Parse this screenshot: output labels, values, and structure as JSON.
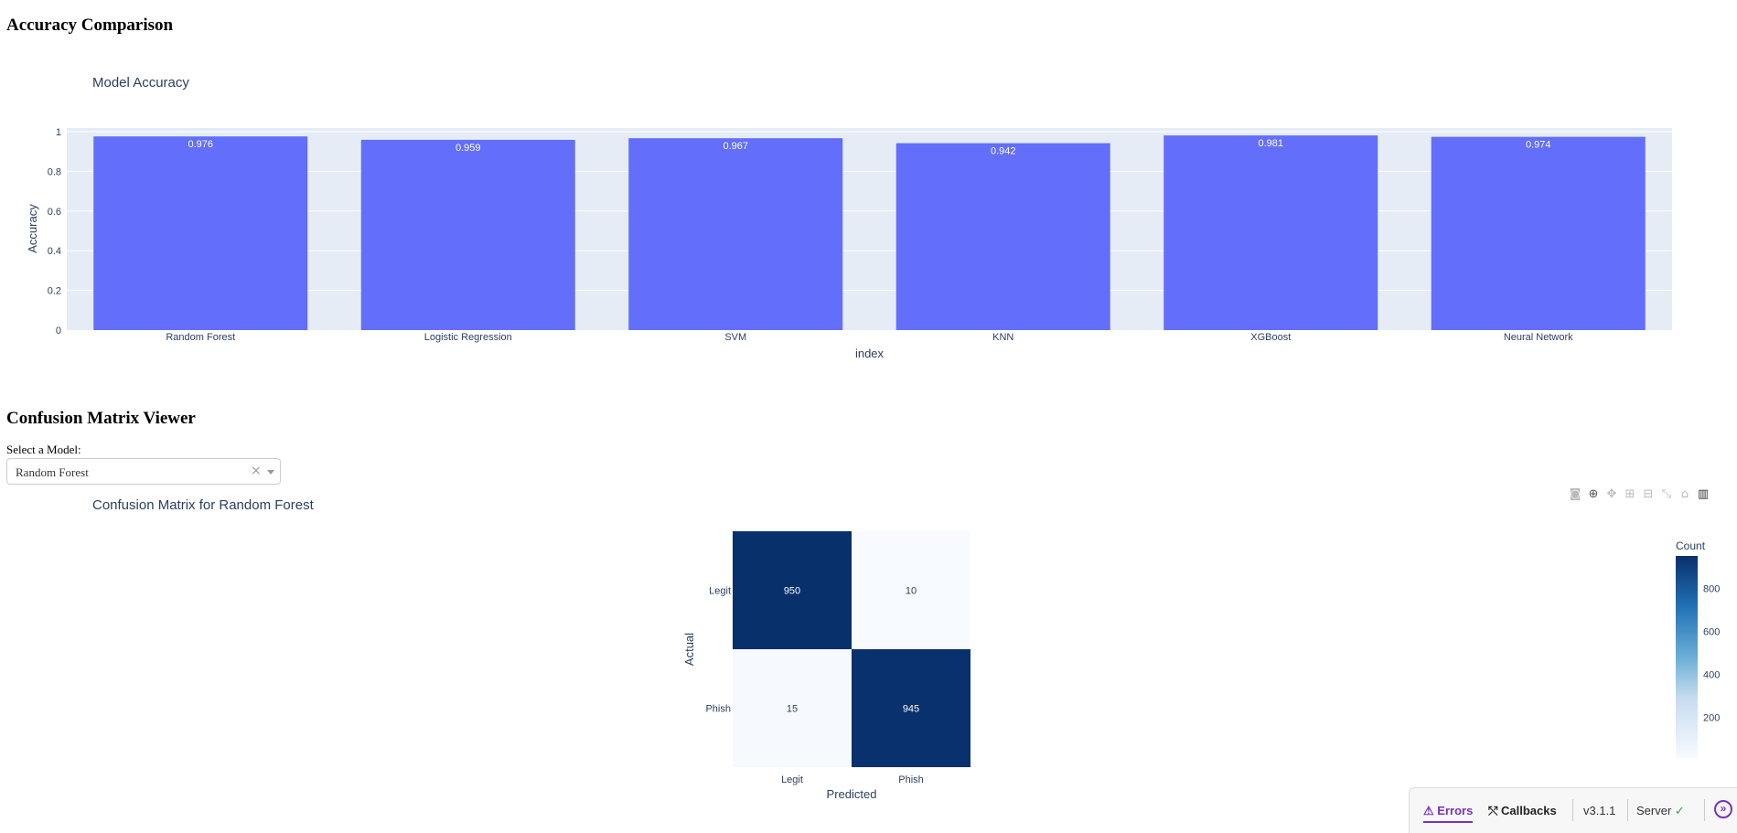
{
  "section1": {
    "heading": "Accuracy Comparison"
  },
  "section2": {
    "heading": "Confusion Matrix Viewer"
  },
  "dropdown": {
    "label": "Select a Model:",
    "value": "Random Forest",
    "clear_icon": "close-icon",
    "arrow_icon": "chevron-down-icon"
  },
  "modebar": {
    "icons": [
      "camera-icon",
      "zoom-icon",
      "pan-icon",
      "zoom-in-icon",
      "zoom-out-icon",
      "autoscale-icon",
      "reset-axes-icon",
      "plotly-logo-icon"
    ]
  },
  "devtools": {
    "errors": "Errors",
    "callbacks": "Callbacks",
    "version": "v3.1.1",
    "server": "Server",
    "toggle_icon": "chevron-right-icon"
  },
  "chart_data": [
    {
      "type": "bar",
      "title": "Model Accuracy",
      "xlabel": "index",
      "ylabel": "Accuracy",
      "categories": [
        "Random Forest",
        "Logistic Regression",
        "SVM",
        "KNN",
        "XGBoost",
        "Neural Network"
      ],
      "values": [
        0.976,
        0.959,
        0.967,
        0.942,
        0.981,
        0.974
      ],
      "data_labels": [
        "0.976",
        "0.959",
        "0.967",
        "0.942",
        "0.981",
        "0.974"
      ],
      "yticks": [
        "0",
        "0.2",
        "0.4",
        "0.6",
        "0.8",
        "1"
      ],
      "ylim": [
        0,
        1
      ],
      "bar_color": "#636efa",
      "plot_bg": "#e5ecf6",
      "grid": true
    },
    {
      "type": "heatmap",
      "title": "Confusion Matrix for Random Forest",
      "xlabel": "Predicted",
      "ylabel": "Actual",
      "x": [
        "Legit",
        "Phish"
      ],
      "y": [
        "Legit",
        "Phish"
      ],
      "z": [
        [
          950,
          10
        ],
        [
          15,
          945
        ]
      ],
      "z_labels": [
        [
          "950",
          "10"
        ],
        [
          "15",
          "945"
        ]
      ],
      "colorscale": "Blues",
      "colorbar": {
        "title": "Count",
        "ticks": [
          "200",
          "400",
          "600",
          "800"
        ],
        "range": [
          10,
          950
        ]
      }
    }
  ]
}
